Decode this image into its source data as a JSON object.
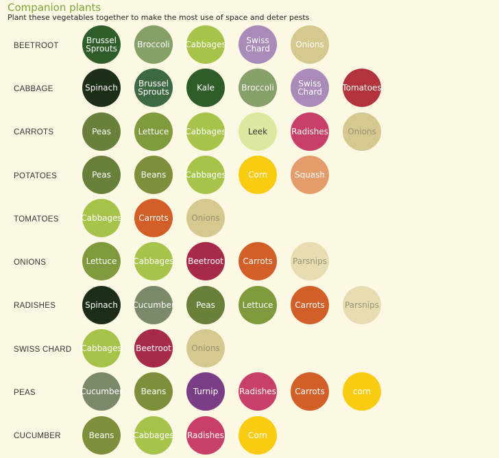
{
  "header": {
    "title": "Companion plants",
    "subtitle": "Plant these vegetables together to make the most use of space and deter pests"
  },
  "rows": [
    {
      "label": "BEETROOT",
      "plants": [
        {
          "name": "Brussel\nSprouts",
          "color": "#2f5d2a",
          "text_color": "#ffffff"
        },
        {
          "name": "Broccoli",
          "color": "#86a06a",
          "text_color": "#ffffff"
        },
        {
          "name": "Cabbages",
          "color": "#a6c44a",
          "text_color": "#ffffff"
        },
        {
          "name": "Swiss\nChard",
          "color": "#a98ab8",
          "text_color": "#ffffff"
        },
        {
          "name": "Onions",
          "color": "#d6c98f",
          "text_color": "#ffffff"
        }
      ]
    },
    {
      "label": "CABBAGE",
      "plants": [
        {
          "name": "Spinach",
          "color": "#1d2e18",
          "text_color": "#ffffff"
        },
        {
          "name": "Brussel\nSprouts",
          "color": "#3e6842",
          "text_color": "#ffffff"
        },
        {
          "name": "Kale",
          "color": "#2f5d2a",
          "text_color": "#ffffff"
        },
        {
          "name": "Broccoli",
          "color": "#86a06a",
          "text_color": "#ffffff"
        },
        {
          "name": "Swiss\nChard",
          "color": "#a98ab8",
          "text_color": "#ffffff"
        },
        {
          "name": "Tomatoes",
          "color": "#b3333c",
          "text_color": "#ffffff"
        }
      ]
    },
    {
      "label": "CARROTS",
      "plants": [
        {
          "name": "Peas",
          "color": "#68803a",
          "text_color": "#ffffff"
        },
        {
          "name": "Lettuce",
          "color": "#7e9a3c",
          "text_color": "#ffffff"
        },
        {
          "name": "Cabbages",
          "color": "#a6c44a",
          "text_color": "#ffffff"
        },
        {
          "name": "Leek",
          "color": "#dde8a0",
          "text_color": "#333333"
        },
        {
          "name": "Radishes",
          "color": "#c8406a",
          "text_color": "#ffffff"
        },
        {
          "name": "Onions",
          "color": "#d6c98f",
          "text_color": "#9a9070"
        }
      ]
    },
    {
      "label": "POTATOES",
      "plants": [
        {
          "name": "Peas",
          "color": "#68803a",
          "text_color": "#ffffff"
        },
        {
          "name": "Beans",
          "color": "#7e8f3c",
          "text_color": "#ffffff"
        },
        {
          "name": "Cabbages",
          "color": "#a6c44a",
          "text_color": "#ffffff"
        },
        {
          "name": "Corn",
          "color": "#f9cc12",
          "text_color": "#ffffff"
        },
        {
          "name": "Squash",
          "color": "#e49c6a",
          "text_color": "#ffffff"
        }
      ]
    },
    {
      "label": "TOMATOES",
      "plants": [
        {
          "name": "Cabbages",
          "color": "#a6c44a",
          "text_color": "#ffffff"
        },
        {
          "name": "Carrots",
          "color": "#d25f28",
          "text_color": "#ffffff"
        },
        {
          "name": "Onions",
          "color": "#d6c98f",
          "text_color": "#9a9070"
        }
      ]
    },
    {
      "label": "ONIONS",
      "plants": [
        {
          "name": "Lettuce",
          "color": "#7e9a3c",
          "text_color": "#ffffff"
        },
        {
          "name": "Cabbages",
          "color": "#a6c44a",
          "text_color": "#ffffff"
        },
        {
          "name": "Beetroot",
          "color": "#a82a4a",
          "text_color": "#ffffff"
        },
        {
          "name": "Carrots",
          "color": "#d25f28",
          "text_color": "#ffffff"
        },
        {
          "name": "Parsnips",
          "color": "#e8ddb2",
          "text_color": "#9a9070"
        }
      ]
    },
    {
      "label": "RADISHES",
      "plants": [
        {
          "name": "Spinach",
          "color": "#1d2e18",
          "text_color": "#ffffff"
        },
        {
          "name": "Cucumber",
          "color": "#7a8a68",
          "text_color": "#ffffff"
        },
        {
          "name": "Peas",
          "color": "#68803a",
          "text_color": "#ffffff"
        },
        {
          "name": "Lettuce",
          "color": "#7e9a3c",
          "text_color": "#ffffff"
        },
        {
          "name": "Carrots",
          "color": "#d25f28",
          "text_color": "#ffffff"
        },
        {
          "name": "Parsnips",
          "color": "#e8ddb2",
          "text_color": "#9a9070"
        }
      ]
    },
    {
      "label": "SWISS CHARD",
      "plants": [
        {
          "name": "Cabbages",
          "color": "#a6c44a",
          "text_color": "#ffffff"
        },
        {
          "name": "Beetroot",
          "color": "#a82a4a",
          "text_color": "#ffffff"
        },
        {
          "name": "Onions",
          "color": "#d6c98f",
          "text_color": "#9a9070"
        }
      ]
    },
    {
      "label": "PEAS",
      "plants": [
        {
          "name": "Cucumber",
          "color": "#7a8a68",
          "text_color": "#ffffff"
        },
        {
          "name": "Beans",
          "color": "#7e8f3c",
          "text_color": "#ffffff"
        },
        {
          "name": "Turnip",
          "color": "#7a3d86",
          "text_color": "#ffffff"
        },
        {
          "name": "Radishes",
          "color": "#c8406a",
          "text_color": "#ffffff"
        },
        {
          "name": "Carrots",
          "color": "#d25f28",
          "text_color": "#ffffff"
        },
        {
          "name": "corn",
          "color": "#f9cc12",
          "text_color": "#ffffff"
        }
      ]
    },
    {
      "label": "CUCUMBER",
      "plants": [
        {
          "name": "Beans",
          "color": "#7e8f3c",
          "text_color": "#ffffff"
        },
        {
          "name": "Cabbages",
          "color": "#a6c44a",
          "text_color": "#ffffff"
        },
        {
          "name": "Radishes",
          "color": "#c8406a",
          "text_color": "#ffffff"
        },
        {
          "name": "Corn",
          "color": "#f9cc12",
          "text_color": "#ffffff"
        }
      ]
    }
  ]
}
